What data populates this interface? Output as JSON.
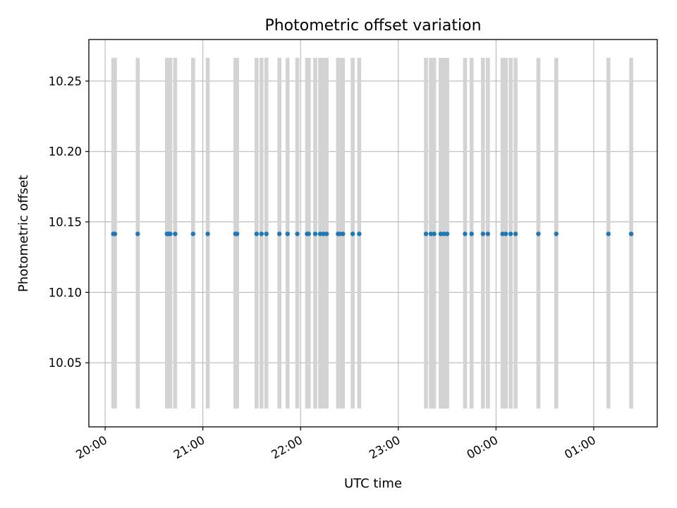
{
  "chart_data": {
    "type": "scatter",
    "title": "Photometric offset variation",
    "xlabel": "UTC time",
    "ylabel": "Photometric offset",
    "xlim": [
      "19:50",
      "01:39"
    ],
    "ylim": [
      10.0045,
      10.2795
    ],
    "grid": true,
    "x_ticks": [
      "20:00",
      "21:00",
      "22:00",
      "23:00",
      "00:00",
      "01:00"
    ],
    "y_ticks": [
      "10.05",
      "10.10",
      "10.15",
      "10.20",
      "10.25"
    ],
    "band_range": [
      10.0175,
      10.2665
    ],
    "colors": {
      "points": "#1f77b4",
      "bands": "#d3d3d3",
      "grid": "#b0b0b0"
    },
    "series": [
      {
        "x": [
          "20:05",
          "20:06",
          "20:20",
          "20:38",
          "20:39",
          "20:40",
          "20:43",
          "20:54",
          "21:03",
          "21:20",
          "21:21",
          "21:33",
          "21:36",
          "21:39",
          "21:47",
          "21:52",
          "21:58",
          "22:04",
          "22:05",
          "22:09",
          "22:12",
          "22:14",
          "22:16",
          "22:23",
          "22:24",
          "22:26",
          "22:32",
          "22:36",
          "23:17",
          "23:20",
          "23:22",
          "23:26",
          "23:28",
          "23:30",
          "23:41",
          "23:45",
          "23:52",
          "23:55",
          "00:04",
          "00:06",
          "00:09",
          "00:12",
          "00:26",
          "00:37",
          "01:09",
          "01:23"
        ],
        "y": [
          10.1415,
          10.1415,
          10.1415,
          10.1415,
          10.1415,
          10.1415,
          10.1415,
          10.1415,
          10.1415,
          10.1415,
          10.1415,
          10.1415,
          10.1415,
          10.1415,
          10.1415,
          10.1415,
          10.1415,
          10.1415,
          10.1415,
          10.1415,
          10.1415,
          10.1415,
          10.1415,
          10.1415,
          10.1415,
          10.1415,
          10.1415,
          10.1415,
          10.1415,
          10.1415,
          10.1415,
          10.1415,
          10.1415,
          10.1415,
          10.1415,
          10.1415,
          10.1415,
          10.1415,
          10.1415,
          10.1415,
          10.1415,
          10.1415,
          10.1415,
          10.1415,
          10.1415,
          10.1415
        ]
      }
    ]
  }
}
